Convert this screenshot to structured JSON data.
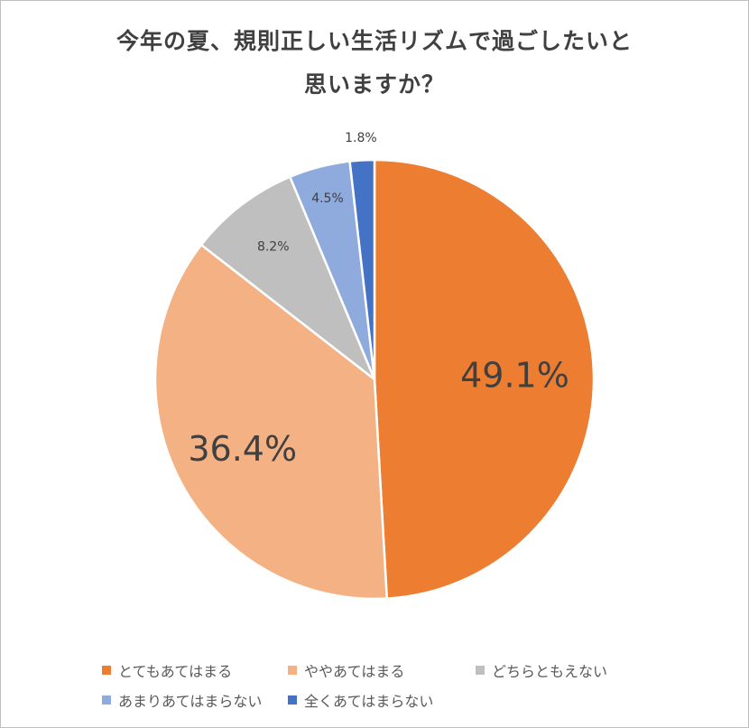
{
  "title_lines": [
    "今年の夏、規則正しい生活リズムで過ごしたいと",
    "思いますか？"
  ],
  "chart_data": {
    "type": "pie",
    "title": "今年の夏、規則正しい生活リズムで過ごしたいと思いますか？",
    "slices": [
      {
        "label": "とてもあてはまる",
        "value": 49.1,
        "display": "49.1%",
        "color": "#ED7D31"
      },
      {
        "label": "ややあてはまる",
        "value": 36.4,
        "display": "36.4%",
        "color": "#F4B183"
      },
      {
        "label": "どちらともえない",
        "value": 8.2,
        "display": "8.2%",
        "color": "#BFBFBF"
      },
      {
        "label": "あまりあてはまらない",
        "value": 4.5,
        "display": "4.5%",
        "color": "#8FAADC"
      },
      {
        "label": "全くあてはまらない",
        "value": 1.8,
        "display": "1.8%",
        "color": "#4472C4"
      }
    ],
    "legend_position": "bottom",
    "start_angle": "top, clockwise"
  }
}
